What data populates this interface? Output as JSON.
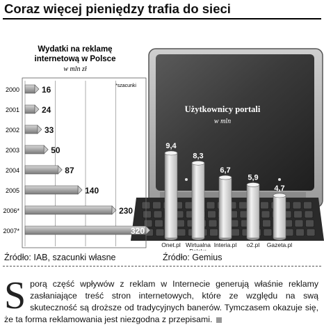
{
  "page_title": "Coraz więcej pieniędzy trafia do sieci",
  "chart_data": [
    {
      "type": "bar",
      "orientation": "horizontal",
      "title": "Wydatki  na reklamę internetową w Polsce",
      "unit_label": "w mln zł",
      "note": "*szacunki",
      "categories": [
        "2000",
        "2001",
        "2002",
        "2003",
        "2004",
        "2005",
        "2006*",
        "2007*"
      ],
      "values": [
        16,
        24,
        33,
        50,
        87,
        140,
        230,
        320
      ],
      "value_labels": [
        "16",
        "24",
        "33",
        "50",
        "87",
        "140",
        "230",
        "320"
      ],
      "xlim": [
        0,
        320
      ],
      "grid": true,
      "bar_color": "#a8a8a8",
      "source": "Źródło: IAB, szacunki własne"
    },
    {
      "type": "bar",
      "orientation": "vertical",
      "title": "Użytkownicy portali",
      "unit_label": "w mln",
      "categories": [
        "Onet.pl",
        "Wirtualna Polska",
        "Interia.pl",
        "o2.pl",
        "Gazeta.pl"
      ],
      "category_lines": [
        [
          "Onet.pl"
        ],
        [
          "Wirtualna",
          "Polska"
        ],
        [
          "Interia.pl"
        ],
        [
          "o2.pl"
        ],
        [
          "Gazeta.pl"
        ]
      ],
      "values": [
        9.4,
        8.3,
        6.7,
        5.9,
        4.7
      ],
      "value_labels": [
        "9,4",
        "8,3",
        "6,7",
        "5,9",
        "4,7"
      ],
      "ylim": [
        0,
        9.4
      ],
      "bar_color": "#d4d4d4",
      "source": "Źródło: Gemius"
    }
  ],
  "article": {
    "dropcap": "S",
    "text": "porą część wpływów z reklam w Internecie generują właśnie reklamy zasłaniające treść stron internetowych, które ze względu na swą skuteczność są droższe od tradycyjnych banerów. Tymczasem okazuje się, że ta forma reklamowania jest niezgodna z przepisami."
  }
}
